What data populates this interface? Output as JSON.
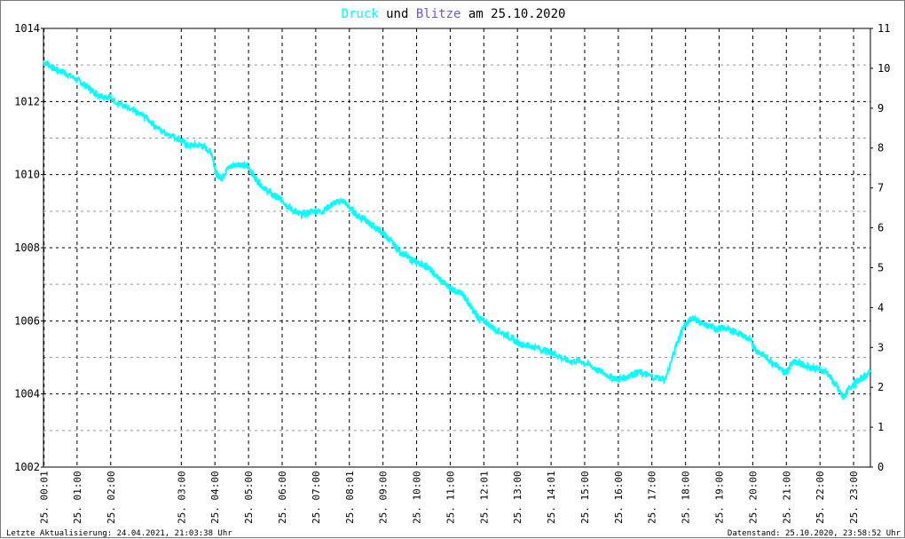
{
  "title": {
    "part1": "Druck",
    "part2": " und ",
    "part3": "Blitze",
    "part4": " am 25.10.2020"
  },
  "colors": {
    "druck": "#00ffff",
    "blitze": "#6a5acd",
    "text": "#000000"
  },
  "footer": {
    "left": "Letzte Aktualisierung: 24.04.2021, 21:03:38 Uhr",
    "right": "Datenstand: 25.10.2020, 23:58:52 Uhr"
  },
  "chart_data": {
    "type": "line",
    "title": "Druck und Blitze am 25.10.2020",
    "grid": true,
    "y_left": {
      "min": 1002,
      "max": 1014,
      "ticks": [
        1002,
        1004,
        1006,
        1008,
        1010,
        1012,
        1014
      ]
    },
    "y_right": {
      "min": 0,
      "max": 11,
      "ticks": [
        0,
        1,
        2,
        3,
        4,
        5,
        6,
        7,
        8,
        9,
        10,
        11
      ]
    },
    "x_ticks": [
      "25. 00:01",
      "25. 01:00",
      "25. 02:00",
      "25. 03:00",
      "25. 04:00",
      "25. 05:00",
      "25. 06:00",
      "25. 07:00",
      "25. 08:01",
      "25. 09:00",
      "25. 10:00",
      "25. 11:00",
      "25. 12:01",
      "25. 13:00",
      "25. 14:01",
      "25. 15:00",
      "25. 16:00",
      "25. 17:00",
      "25. 18:00",
      "25. 19:00",
      "25. 20:00",
      "25. 21:00",
      "25. 22:00",
      "25. 23:00"
    ],
    "x_tick_hours": [
      0.017,
      1,
      2,
      4.1,
      5.1,
      6.1,
      7.1,
      8.1,
      9.1,
      10.1,
      11.1,
      12.1,
      13.1,
      14.1,
      15.1,
      16.1,
      17.1,
      18.1,
      19.1,
      20.1,
      21.1,
      22.1,
      23.1,
      24.1
    ],
    "x_range_hours": [
      0,
      24.6
    ],
    "series": [
      {
        "name": "Druck",
        "x_hours": [
          0.0,
          0.3,
          0.6,
          1.0,
          1.3,
          1.6,
          2.0,
          2.5,
          3.0,
          3.5,
          4.0,
          4.3,
          4.7,
          5.0,
          5.15,
          5.3,
          5.5,
          5.8,
          6.1,
          6.3,
          6.6,
          6.9,
          7.1,
          7.3,
          7.6,
          8.0,
          8.3,
          8.6,
          8.9,
          9.1,
          9.3,
          9.5,
          9.8,
          10.1,
          10.3,
          10.6,
          10.9,
          11.1,
          11.4,
          11.7,
          12.1,
          12.3,
          12.5,
          12.7,
          12.9,
          13.1,
          13.4,
          13.8,
          14.1,
          14.5,
          14.9,
          15.2,
          15.6,
          16.0,
          16.4,
          16.8,
          17.1,
          17.4,
          17.7,
          18.0,
          18.5,
          19.0,
          19.3,
          19.6,
          20.0,
          20.3,
          20.6,
          21.0,
          21.2,
          21.5,
          21.8,
          22.0,
          22.1,
          22.3,
          22.6,
          23.0,
          23.3,
          23.6,
          23.8,
          24.0,
          24.3,
          24.6
        ],
        "values": [
          1013.1,
          1012.9,
          1012.8,
          1012.6,
          1012.4,
          1012.2,
          1012.1,
          1011.8,
          1011.6,
          1011.2,
          1011.0,
          1010.8,
          1010.8,
          1010.6,
          1010.0,
          1009.9,
          1010.2,
          1010.3,
          1010.2,
          1009.9,
          1009.6,
          1009.4,
          1009.3,
          1009.1,
          1008.9,
          1009.0,
          1009.0,
          1009.2,
          1009.3,
          1009.1,
          1008.9,
          1008.8,
          1008.6,
          1008.4,
          1008.2,
          1007.9,
          1007.7,
          1007.6,
          1007.5,
          1007.2,
          1006.9,
          1006.8,
          1006.7,
          1006.4,
          1006.1,
          1006.0,
          1005.8,
          1005.6,
          1005.4,
          1005.3,
          1005.2,
          1005.1,
          1004.9,
          1004.9,
          1004.7,
          1004.5,
          1004.4,
          1004.5,
          1004.6,
          1004.5,
          1004.4,
          1005.8,
          1006.1,
          1005.9,
          1005.8,
          1005.8,
          1005.7,
          1005.5,
          1005.2,
          1005.0,
          1004.8,
          1004.6,
          1004.6,
          1004.9,
          1004.8,
          1004.7,
          1004.6,
          1004.2,
          1003.9,
          1004.2,
          1004.4,
          1004.6
        ]
      }
    ]
  }
}
